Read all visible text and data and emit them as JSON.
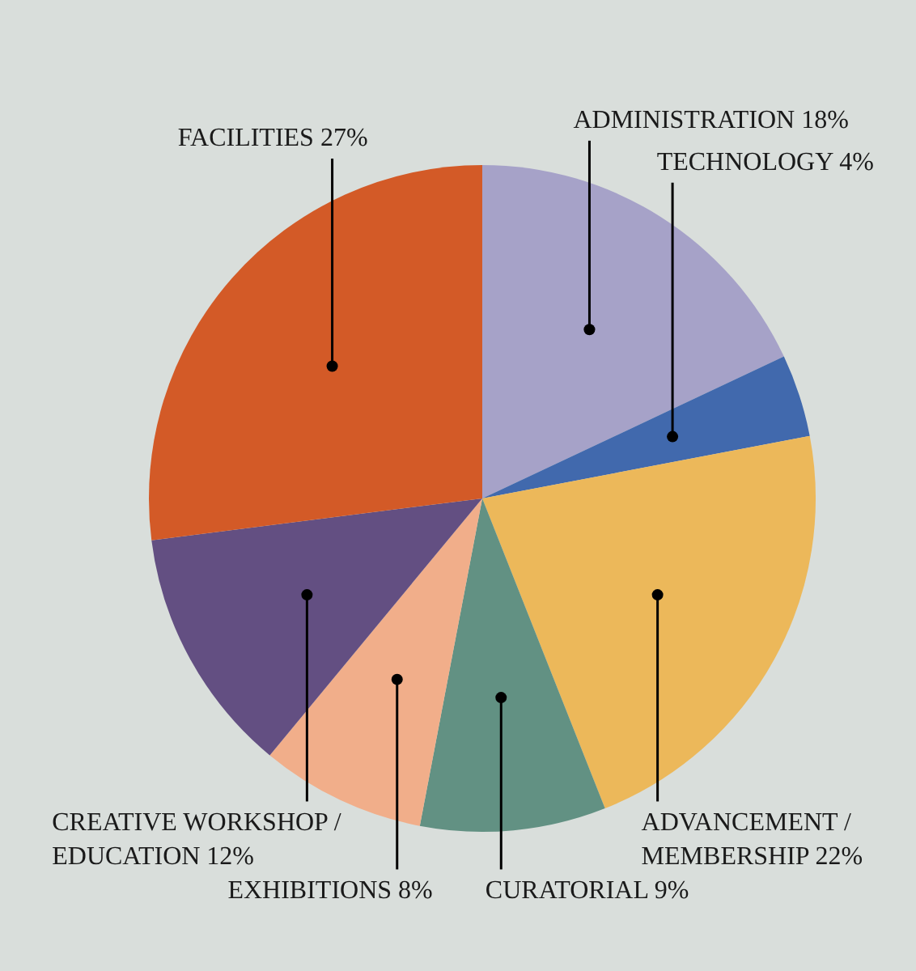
{
  "chart_data": {
    "type": "pie",
    "categories": [
      "ADMINISTRATION",
      "TECHNOLOGY",
      "ADVANCEMENT / MEMBERSHIP",
      "CURATORIAL",
      "EXHIBITIONS",
      "CREATIVE WORKSHOP / EDUCATION",
      "FACILITIES"
    ],
    "values": [
      18,
      4,
      22,
      9,
      8,
      12,
      27
    ],
    "value_labels": [
      "18%",
      "4%",
      "22%",
      "9%",
      "8%",
      "12%",
      "27%"
    ],
    "colors": [
      "#a6a2c8",
      "#4169ad",
      "#ecb85a",
      "#629183",
      "#f1ae8a",
      "#634f82",
      "#d35a27"
    ],
    "legend": false
  }
}
